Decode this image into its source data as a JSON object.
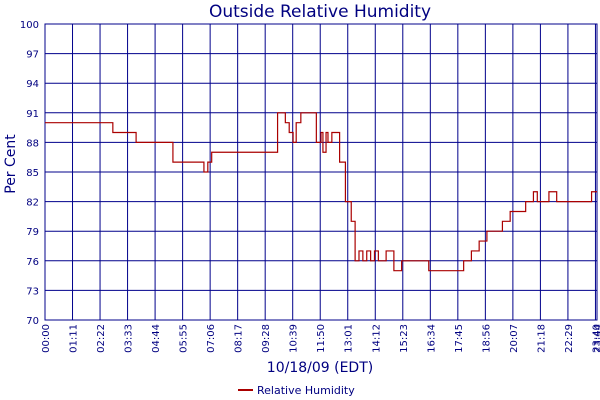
{
  "colors": {
    "series": "#aa0000",
    "grid": "#00008b",
    "text": "#000080",
    "background": "#ffffff"
  },
  "chart_data": {
    "type": "line",
    "title": "Outside Relative Humidity",
    "xlabel": "10/18/09 (EDT)",
    "ylabel": "Per Cent",
    "ylim": [
      70,
      100
    ],
    "yticks": [
      "70",
      "73",
      "76",
      "79",
      "82",
      "85",
      "88",
      "91",
      "94",
      "97",
      "100"
    ],
    "xticks": [
      "00:00",
      "01:11",
      "02:22",
      "03:33",
      "04:44",
      "05:55",
      "07:06",
      "08:17",
      "09:28",
      "10:39",
      "11:50",
      "13:01",
      "14:12",
      "15:23",
      "16:34",
      "17:45",
      "18:56",
      "20:07",
      "21:18",
      "22:29",
      "23:40",
      "23:44"
    ],
    "xticks_minutes": [
      0,
      71,
      142,
      213,
      284,
      355,
      426,
      497,
      568,
      639,
      710,
      781,
      852,
      923,
      994,
      1065,
      1136,
      1207,
      1278,
      1349,
      1420,
      1424
    ],
    "xlim_minutes": [
      0,
      1424
    ],
    "grid": true,
    "legend_position": "bottom-center",
    "series": [
      {
        "name": "Relative Humidity",
        "x_minutes": [
          0,
          170,
          175,
          230,
          235,
          310,
          330,
          355,
          410,
          420,
          430,
          600,
          605,
          620,
          630,
          640,
          648,
          660,
          670,
          690,
          700,
          712,
          717,
          725,
          730,
          740,
          760,
          775,
          790,
          800,
          810,
          820,
          830,
          840,
          850,
          860,
          880,
          900,
          920,
          950,
          990,
          1060,
          1080,
          1100,
          1120,
          1140,
          1160,
          1180,
          1200,
          1220,
          1240,
          1260,
          1270,
          1300,
          1320,
          1360,
          1400,
          1410,
          1424
        ],
        "y": [
          90,
          90,
          89,
          89,
          88,
          88,
          86,
          86,
          85,
          86,
          87,
          91,
          91,
          90,
          89,
          88,
          90,
          91,
          91,
          91,
          88,
          89,
          87,
          89,
          88,
          89,
          86,
          82,
          80,
          76,
          77,
          76,
          77,
          76,
          77,
          76,
          77,
          75,
          76,
          76,
          75,
          75,
          76,
          77,
          78,
          79,
          79,
          80,
          81,
          81,
          82,
          83,
          82,
          83,
          82,
          82,
          82,
          83,
          83
        ]
      }
    ]
  }
}
